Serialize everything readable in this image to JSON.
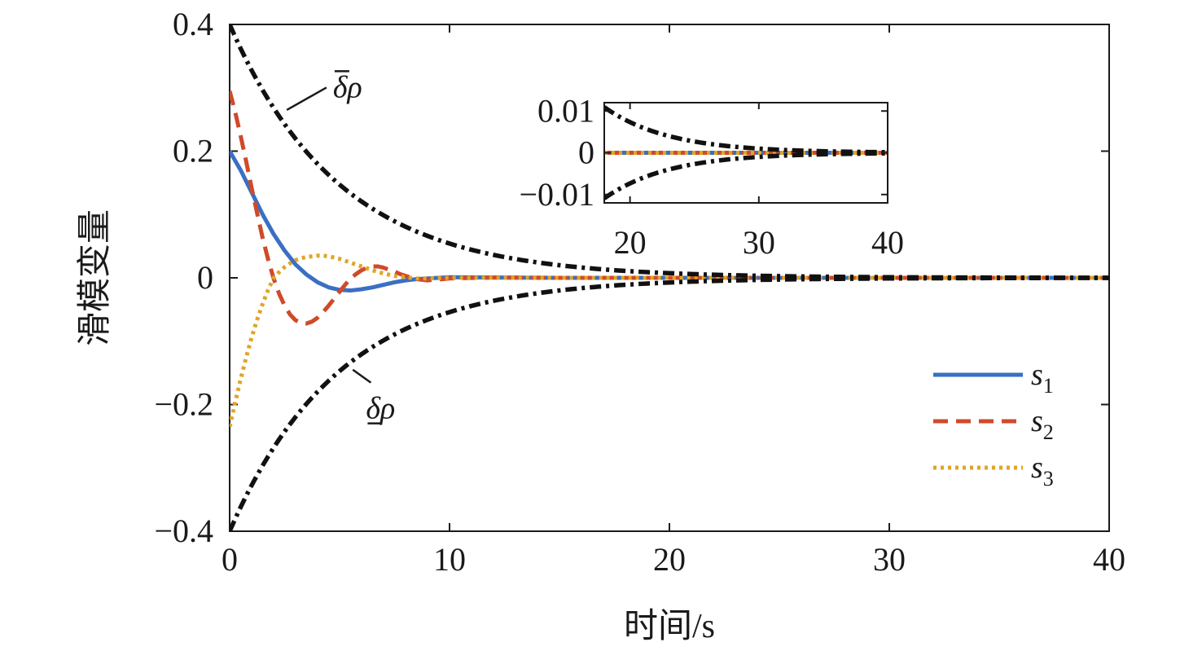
{
  "chart_data": [
    {
      "type": "line",
      "title": "",
      "xlabel": "时间/s",
      "ylabel": "滑模变量",
      "xlim": [
        0,
        40
      ],
      "ylim": [
        -0.4,
        0.4
      ],
      "xticks": [
        0,
        10,
        20,
        30,
        40
      ],
      "xtick_labels": [
        "0",
        "10",
        "20",
        "30",
        "40"
      ],
      "yticks": [
        -0.4,
        -0.2,
        0,
        0.2,
        0.4
      ],
      "ytick_labels": [
        "−0.4",
        "−0.2",
        "0",
        "0.2",
        "0.4"
      ],
      "grid": false,
      "legend_position": "bottom-right",
      "series": [
        {
          "name": "s1",
          "label_main": "s",
          "label_sub": "1",
          "color": "#3A6FC4",
          "dash": "solid",
          "x": [
            0,
            0.5,
            1,
            1.5,
            2,
            2.5,
            3,
            3.5,
            4,
            4.5,
            5,
            5.5,
            6,
            6.5,
            7,
            7.5,
            8,
            8.5,
            9,
            10,
            12,
            15,
            20,
            25,
            30,
            35,
            40
          ],
          "y": [
            0.2,
            0.17,
            0.135,
            0.1,
            0.069,
            0.043,
            0.021,
            0.005,
            -0.007,
            -0.015,
            -0.019,
            -0.02,
            -0.018,
            -0.015,
            -0.011,
            -0.007,
            -0.004,
            -0.002,
            -0.001,
            0.001,
            0.0005,
            0,
            0,
            0,
            0,
            0,
            0
          ]
        },
        {
          "name": "s2",
          "label_main": "s",
          "label_sub": "2",
          "color": "#D04A2A",
          "dash": "dash",
          "x": [
            0,
            0.25,
            0.5,
            0.75,
            1,
            1.25,
            1.5,
            1.75,
            2,
            2.25,
            2.5,
            2.75,
            3,
            3.25,
            3.5,
            3.75,
            4,
            4.25,
            4.5,
            4.75,
            5,
            5.25,
            5.5,
            5.75,
            6,
            6.25,
            6.5,
            6.75,
            7,
            7.25,
            7.5,
            7.75,
            8,
            8.5,
            9,
            10,
            12,
            15,
            20,
            25,
            30,
            35,
            40
          ],
          "y": [
            0.295,
            0.262,
            0.224,
            0.184,
            0.142,
            0.102,
            0.063,
            0.029,
            -0.001,
            -0.025,
            -0.044,
            -0.058,
            -0.067,
            -0.071,
            -0.072,
            -0.069,
            -0.063,
            -0.054,
            -0.044,
            -0.033,
            -0.022,
            -0.011,
            -0.001,
            0.006,
            0.012,
            0.016,
            0.018,
            0.018,
            0.016,
            0.013,
            0.01,
            0.006,
            0.003,
            -0.002,
            -0.004,
            -0.001,
            0.0005,
            0,
            0,
            0,
            0,
            0,
            0
          ]
        },
        {
          "name": "s3",
          "label_main": "s",
          "label_sub": "3",
          "color": "#E0A526",
          "dash": "dot",
          "x": [
            0,
            0.25,
            0.5,
            0.75,
            1,
            1.25,
            1.5,
            1.75,
            2,
            2.25,
            2.5,
            2.75,
            3,
            3.25,
            3.5,
            3.75,
            4,
            4.25,
            4.5,
            4.75,
            5,
            5.25,
            5.5,
            5.75,
            6,
            6.25,
            6.5,
            6.75,
            7,
            7.5,
            8,
            8.5,
            9,
            10,
            12,
            15,
            20,
            25,
            30,
            35,
            40
          ],
          "y": [
            -0.235,
            -0.197,
            -0.16,
            -0.126,
            -0.094,
            -0.066,
            -0.041,
            -0.019,
            0.0,
            0.009,
            0.017,
            0.023,
            0.028,
            0.031,
            0.033,
            0.034,
            0.035,
            0.035,
            0.034,
            0.032,
            0.03,
            0.027,
            0.024,
            0.021,
            0.018,
            0.015,
            0.012,
            0.009,
            0.007,
            0.003,
            0.001,
            -0.001,
            -0.001,
            0,
            0,
            0,
            0,
            0,
            0,
            0,
            0
          ]
        },
        {
          "name": "upper bound",
          "color": "#111111",
          "dash": "dashdot",
          "function": "0.4*exp(-t/5)"
        },
        {
          "name": "lower bound",
          "color": "#111111",
          "dash": "dashdot",
          "function": "-0.4*exp(-t/5)"
        }
      ],
      "annotations": [
        {
          "text": "δρ",
          "bar": "over",
          "at_x": 4.7,
          "at_y": 0.285,
          "leader_to_x": 2.6,
          "leader_to_y": 0.265
        },
        {
          "text": "δρ",
          "bar": "under",
          "at_x": 6.2,
          "at_y": -0.222,
          "leader_to_x": 5.6,
          "leader_to_y": -0.145
        }
      ]
    },
    {
      "type": "line",
      "title": "",
      "xlabel": "",
      "ylabel": "",
      "xlim": [
        18,
        40
      ],
      "ylim": [
        -0.012,
        0.012
      ],
      "xticks": [
        20,
        30,
        40
      ],
      "xtick_labels": [
        "20",
        "30",
        "40"
      ],
      "yticks": [
        -0.01,
        0,
        0.01
      ],
      "ytick_labels": [
        "−0.01",
        "0",
        "0.01"
      ],
      "grid": false,
      "series": [
        {
          "name": "s1",
          "color": "#3A6FC4",
          "dash": "solid",
          "constant": 0
        },
        {
          "name": "s2",
          "color": "#D04A2A",
          "dash": "dash",
          "constant": 0
        },
        {
          "name": "s3",
          "color": "#E0A526",
          "dash": "dot",
          "constant": 0
        },
        {
          "name": "upper bound",
          "color": "#111111",
          "dash": "dashdot",
          "function": "0.4*exp(-t/5)"
        },
        {
          "name": "lower bound",
          "color": "#111111",
          "dash": "dashdot",
          "function": "-0.4*exp(-t/5)"
        }
      ]
    }
  ]
}
